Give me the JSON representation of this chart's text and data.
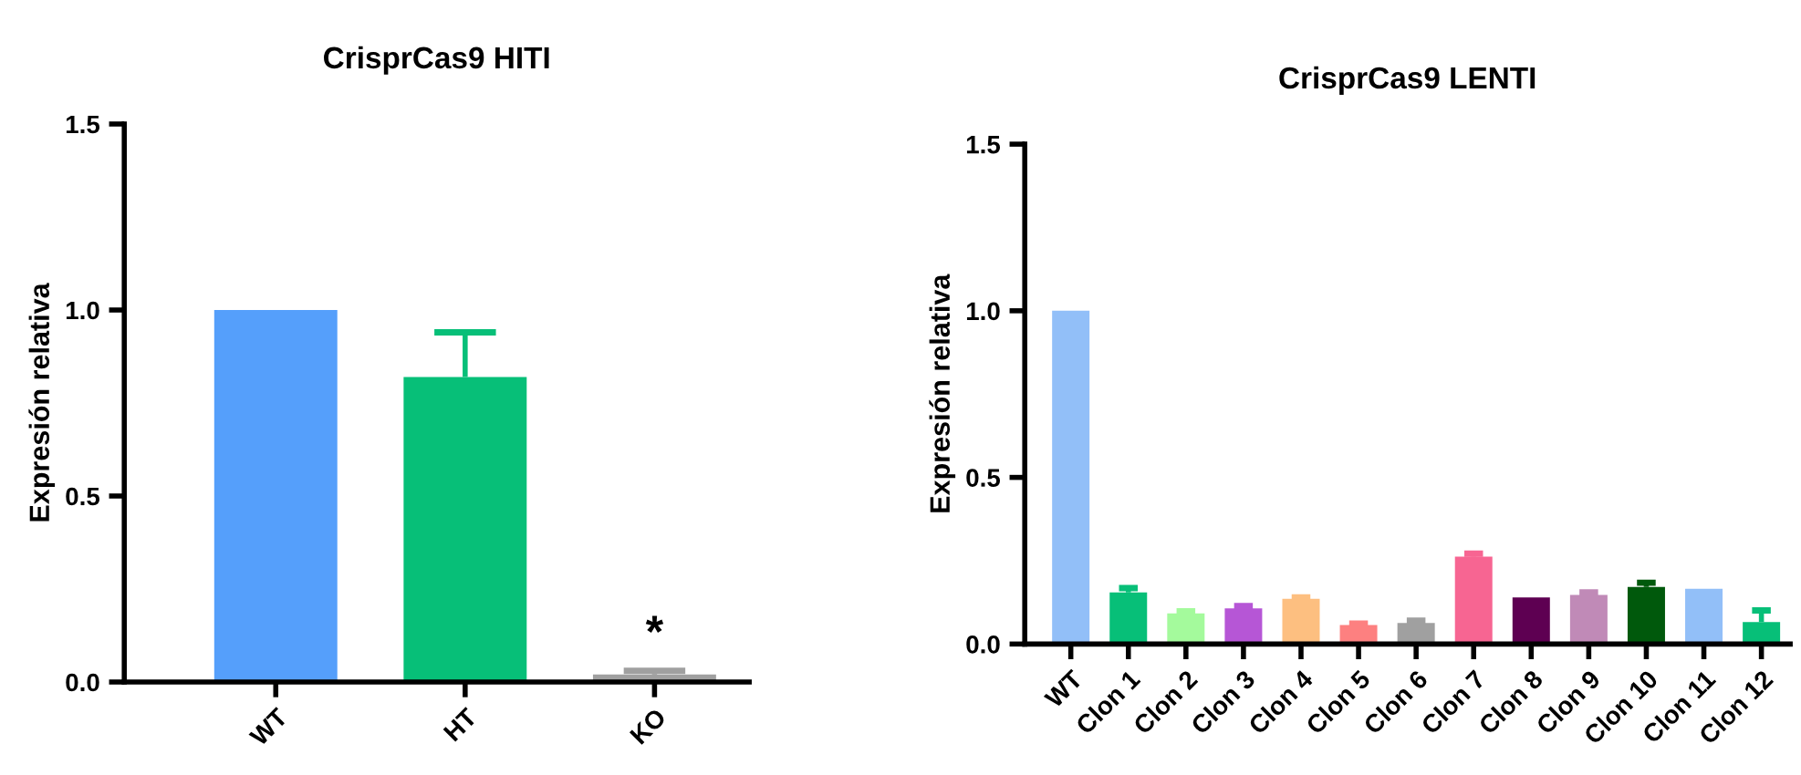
{
  "chart_data": [
    {
      "type": "bar",
      "title": "CrisprCas9 HITI",
      "ylabel": "Expresión relativa",
      "categories": [
        "WT",
        "HT",
        "KO"
      ],
      "values": [
        1.0,
        0.82,
        0.02
      ],
      "colors": [
        "#559ffb",
        "#07bf78",
        "#a0a0a0"
      ],
      "errors": [
        null,
        [
          0.82,
          0.94
        ],
        [
          0.02,
          0.03
        ]
      ],
      "ylim": [
        0,
        1.5
      ],
      "yticks": [
        {
          "value": 0,
          "label": "0.0"
        },
        {
          "value": 0.5,
          "label": "0.5"
        },
        {
          "value": 1,
          "label": "1.0"
        },
        {
          "value": 1.5,
          "label": "1.5"
        }
      ],
      "annotations": [
        "*"
      ],
      "grid": false,
      "legend": false
    },
    {
      "type": "bar",
      "title": "CrisprCas9 LENTI",
      "ylabel": "Expresión relativa",
      "categories": [
        "WT",
        "Clon 1",
        "Clon 2",
        "Clon 3",
        "Clon 4",
        "Clon 5",
        "Clon 6",
        "Clon 7",
        "Clon 8",
        "Clon 9",
        "Clon 10",
        "Clon 11",
        "Clon 12"
      ],
      "values": [
        1.0,
        0.155,
        0.092,
        0.107,
        0.136,
        0.057,
        0.063,
        0.262,
        0.14,
        0.147,
        0.171,
        0.166,
        0.066
      ],
      "colors": [
        "#92bff8",
        "#07bf78",
        "#a4fa9c",
        "#b656d6",
        "#fdbf80",
        "#fd8080",
        "#a0a0a0",
        "#f76592",
        "#5e0052",
        "#c08ab7",
        "#00590c",
        "#92bff8",
        "#07bf78"
      ],
      "errors": [
        null,
        [
          0.155,
          0.168
        ],
        [
          0.092,
          0.098
        ],
        [
          0.107,
          0.114
        ],
        [
          0.136,
          0.14
        ],
        [
          0.057,
          0.061
        ],
        [
          0.063,
          0.07
        ],
        [
          0.262,
          0.271
        ],
        null,
        [
          0.147,
          0.155
        ],
        [
          0.171,
          0.184
        ],
        null,
        [
          0.066,
          0.101
        ]
      ],
      "ylim": [
        0,
        1.5
      ],
      "yticks": [
        {
          "value": 0,
          "label": "0.0"
        },
        {
          "value": 0.5,
          "label": "0.5"
        },
        {
          "value": 1,
          "label": "1.0"
        },
        {
          "value": 1.5,
          "label": "1.5"
        }
      ],
      "grid": false,
      "legend": false
    }
  ]
}
